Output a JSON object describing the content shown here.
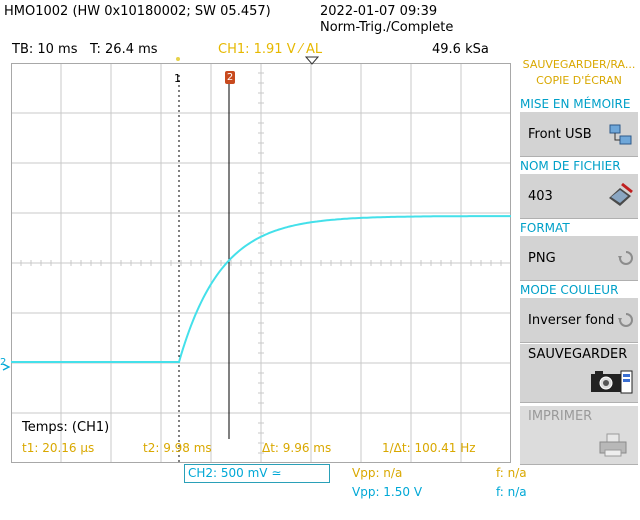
{
  "header": {
    "device": "HMO1002 (HW 0x10180002; SW 05.457)",
    "datetime": "2022-01-07 09:39",
    "trigger_status": "Norm-Trig./Complete"
  },
  "status_bar": {
    "timebase": "TB: 10 ms",
    "time": "T: 26.4 ms",
    "ch1_trigger": "CH1: 1.91 V ⁄ AL",
    "sample_rate": "49.6 kSa"
  },
  "cursors": {
    "c1_label": "1",
    "c2_label": "2",
    "source": "Temps: (CH1)",
    "t1": "t1: 20.16 µs",
    "t2": "t2: 9.98 ms",
    "dt": "Δt: 9.96 ms",
    "inv_dt": "1/Δt: 100.41 Hz"
  },
  "bottom": {
    "ch2": "CH2: 500 mV ≃",
    "vpp1": "Vpp: n/a",
    "vpp2": "Vpp: 1.50 V",
    "f1": "f: n/a",
    "f2": "f: n/a"
  },
  "markers": {
    "channel_marker": "2"
  },
  "side_panel": {
    "title_line1": "SAUVEGARDER/RA...",
    "title_line2": "COPIE D'ÉCRAN",
    "mem_title": "MISE EN MÉMOIRE",
    "mem_value": "Front USB",
    "file_title": "NOM DE FICHIER",
    "file_value": "403",
    "format_title": "FORMAT",
    "format_value": "PNG",
    "color_title": "MODE COULEUR",
    "color_value": "Inverser fond",
    "save_label": "SAUVEGARDER",
    "print_label": "IMPRIMER"
  },
  "colors": {
    "trace": "#44e0ea",
    "cursor_t1": "#000000",
    "cursor_t2_marker": "#c84a1e",
    "accent_yellow": "#e6b800",
    "accent_cyan": "#00a0c8"
  }
}
